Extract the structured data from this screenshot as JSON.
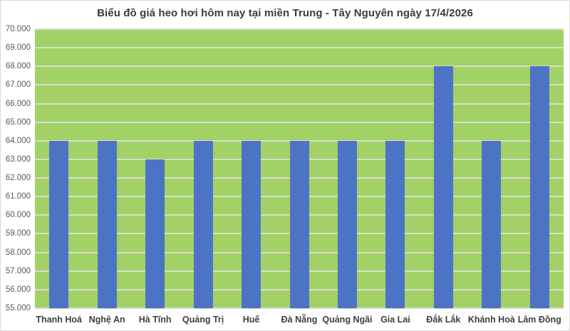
{
  "title": "Biểu đồ giá heo hơi hôm nay tại miền Trung - Tây Nguyên ngày 17/4/2026",
  "colors": {
    "bar": "#4e73c5",
    "plot_background": "#a2d165",
    "gridline": "#d8dcd0",
    "title_text": "#3b3b3b",
    "ytick_text": "#595959",
    "category_text": "#3f3f3f",
    "frame_border": "#d9d9d9",
    "page_background": "#ffffff"
  },
  "chart_data": {
    "type": "bar",
    "title": "Biểu đồ giá heo hơi hôm nay tại miền Trung - Tây Nguyên ngày 17/4/2026",
    "categories": [
      "Thanh Hoá",
      "Nghệ An",
      "Hà Tĩnh",
      "Quảng Trị",
      "Huế",
      "Đà Nẵng",
      "Quảng Ngãi",
      "Gia Lai",
      "Đắk Lắk",
      "Khánh Hoà",
      "Lâm Đồng"
    ],
    "values": [
      64000,
      64000,
      63000,
      64000,
      64000,
      64000,
      64000,
      64000,
      68000,
      64000,
      68000
    ],
    "xlabel": "",
    "ylabel": "",
    "ylim": [
      55000,
      70000
    ],
    "ytick_step": 1000,
    "ytick_labels": [
      "70.000",
      "69.000",
      "68.000",
      "67.000",
      "66.000",
      "65.000",
      "64.000",
      "63.000",
      "62.000",
      "61.000",
      "60.000",
      "59.000",
      "58.000",
      "57.000",
      "56.000",
      "55.000"
    ],
    "grid": "horizontal",
    "legend": "none",
    "bar_color": "#4e73c5"
  }
}
